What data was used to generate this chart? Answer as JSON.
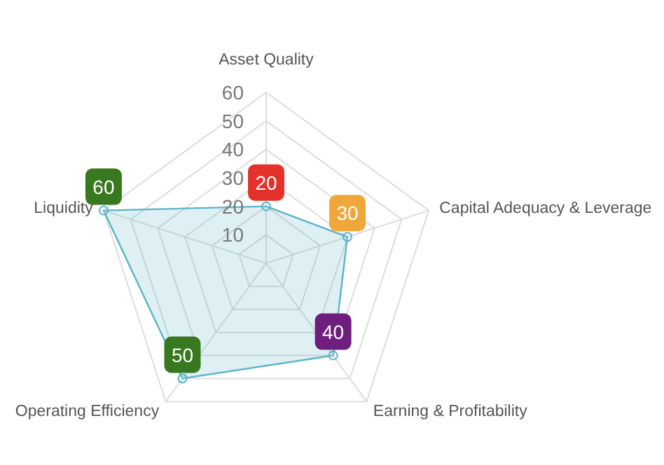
{
  "chart_data": {
    "type": "radar",
    "categories": [
      "Asset Quality",
      "Capital Adequacy & Leverage",
      "Earning & Profitability",
      "Operating Efficiency",
      "Liquidity"
    ],
    "series": [
      {
        "color": "#5ab4c8",
        "values": [
          20,
          30,
          40,
          50,
          60
        ],
        "colors": [
          "#e3322b",
          "#f0a73a",
          "#6e1f7e",
          "#38781f",
          "#38781f"
        ]
      }
    ],
    "ylim": [
      0,
      60
    ],
    "yticks": [
      10,
      20,
      30,
      40,
      50,
      60
    ],
    "grid": true,
    "marker": "circle",
    "data_labels": true
  }
}
